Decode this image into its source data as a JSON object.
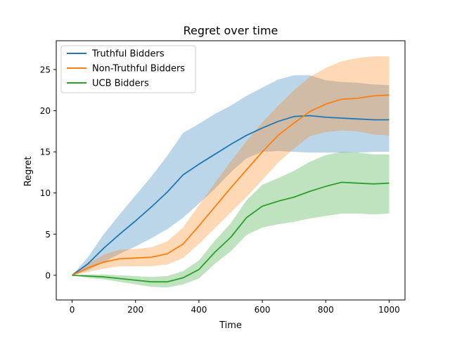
{
  "chart_data": {
    "type": "line",
    "title": "Regret over time",
    "xlabel": "Time",
    "ylabel": "Regret",
    "xlim": [
      -50,
      1050
    ],
    "ylim": [
      -3,
      28.5
    ],
    "xticks": [
      0,
      200,
      400,
      600,
      800,
      1000
    ],
    "yticks": [
      0,
      5,
      10,
      15,
      20,
      25
    ],
    "legend": "upper-left",
    "grid": false,
    "series": [
      {
        "name": "Truthful Bidders",
        "color": "#1f77b4",
        "x": [
          0,
          50,
          100,
          150,
          200,
          250,
          300,
          350,
          400,
          450,
          500,
          550,
          600,
          650,
          700,
          750,
          800,
          850,
          900,
          950,
          1000
        ],
        "y": [
          0,
          1.4,
          3.3,
          5.0,
          6.6,
          8.3,
          10.1,
          12.2,
          13.5,
          14.7,
          15.9,
          17.0,
          17.9,
          18.7,
          19.3,
          19.4,
          19.2,
          19.1,
          19.0,
          18.9,
          18.9
        ],
        "lower": [
          0,
          0.6,
          1.6,
          2.6,
          3.5,
          4.5,
          5.6,
          7.0,
          8.7,
          10.5,
          12.5,
          14.2,
          15.0,
          15.1,
          15.0,
          14.9,
          14.9,
          14.9,
          14.9,
          15.0,
          15.0
        ],
        "upper": [
          0,
          2.2,
          5.0,
          7.4,
          9.7,
          12.0,
          14.5,
          17.3,
          18.4,
          19.6,
          20.6,
          21.8,
          22.8,
          23.8,
          24.3,
          24.3,
          23.7,
          23.5,
          23.4,
          23.2,
          23.1
        ]
      },
      {
        "name": "Non-Truthful Bidders",
        "color": "#ff7f0e",
        "x": [
          0,
          50,
          100,
          150,
          200,
          250,
          300,
          350,
          400,
          450,
          500,
          550,
          600,
          650,
          700,
          750,
          800,
          850,
          900,
          950,
          1000
        ],
        "y": [
          0,
          0.9,
          1.6,
          2.0,
          2.1,
          2.2,
          2.6,
          3.8,
          6.0,
          8.3,
          10.6,
          12.8,
          15.0,
          17.0,
          18.5,
          19.9,
          20.8,
          21.4,
          21.5,
          21.8,
          21.9
        ],
        "lower": [
          0,
          0.4,
          0.8,
          1.1,
          1.1,
          1.1,
          1.3,
          2.1,
          3.8,
          5.7,
          7.6,
          9.5,
          11.6,
          13.7,
          15.4,
          16.9,
          17.4,
          17.6,
          17.5,
          17.1,
          17.0
        ],
        "upper": [
          0,
          1.4,
          2.5,
          3.1,
          3.2,
          3.4,
          4.1,
          5.8,
          8.5,
          11.2,
          13.8,
          16.3,
          18.6,
          20.6,
          22.5,
          24.1,
          25.2,
          26.0,
          26.4,
          26.6,
          26.6
        ]
      },
      {
        "name": "UCB Bidders",
        "color": "#2ca02c",
        "x": [
          0,
          50,
          100,
          150,
          200,
          250,
          300,
          350,
          400,
          450,
          500,
          550,
          600,
          650,
          700,
          750,
          800,
          850,
          900,
          950,
          1000
        ],
        "y": [
          0,
          -0.1,
          -0.2,
          -0.4,
          -0.6,
          -0.8,
          -0.8,
          -0.3,
          0.7,
          2.8,
          4.6,
          7.0,
          8.4,
          9.0,
          9.5,
          10.2,
          10.8,
          11.3,
          11.2,
          11.1,
          11.2
        ],
        "lower": [
          0,
          -0.3,
          -0.5,
          -0.8,
          -1.1,
          -1.4,
          -1.5,
          -1.1,
          -0.4,
          1.4,
          2.9,
          4.9,
          5.8,
          6.2,
          6.5,
          6.9,
          7.2,
          7.5,
          7.5,
          7.4,
          7.5
        ],
        "upper": [
          0,
          0.1,
          0.1,
          0.0,
          -0.1,
          -0.2,
          -0.1,
          0.5,
          1.8,
          4.2,
          6.3,
          9.1,
          11.0,
          11.8,
          12.7,
          13.8,
          14.6,
          15.0,
          14.9,
          14.7,
          14.7
        ]
      }
    ]
  }
}
